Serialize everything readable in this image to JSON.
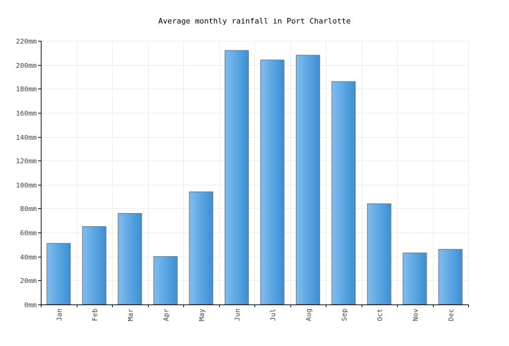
{
  "chart_data": {
    "type": "bar",
    "title": "Average monthly rainfall in Port Charlotte",
    "xlabel": "",
    "ylabel": "",
    "unit": "mm",
    "categories": [
      "Jan",
      "Feb",
      "Mar",
      "Apr",
      "May",
      "Jun",
      "Jul",
      "Aug",
      "Sep",
      "Oct",
      "Nov",
      "Dec"
    ],
    "values": [
      51,
      65,
      76,
      40,
      94,
      212,
      204,
      208,
      186,
      84,
      43,
      46
    ],
    "ylim": [
      0,
      220
    ],
    "yticks": [
      0,
      20,
      40,
      60,
      80,
      100,
      120,
      140,
      160,
      180,
      200,
      220
    ],
    "ytick_labels": [
      "0mm",
      "20mm",
      "40mm",
      "60mm",
      "80mm",
      "100mm",
      "120mm",
      "140mm",
      "160mm",
      "180mm",
      "200mm",
      "220mm"
    ],
    "grid": true,
    "bar_color": "#4b9fe0"
  }
}
